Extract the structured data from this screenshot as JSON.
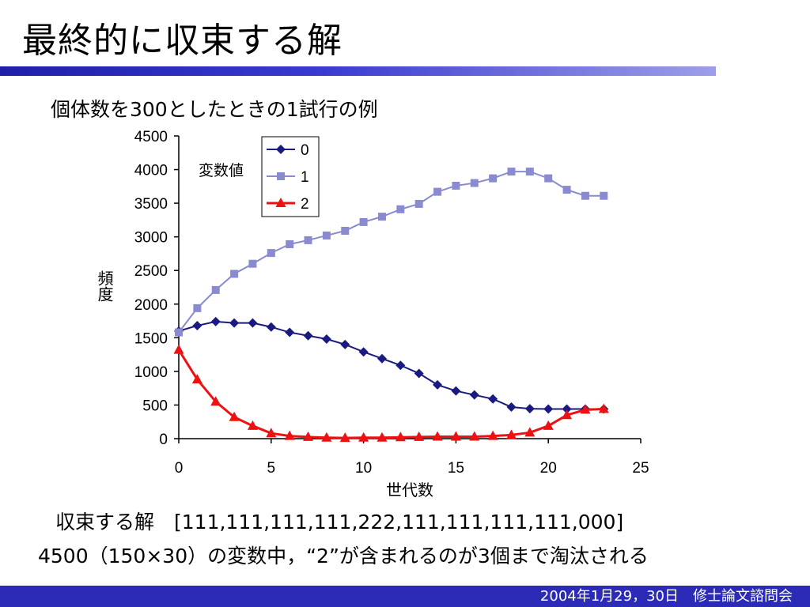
{
  "slide": {
    "title": "最終的に収束する解",
    "subtitle": "個体数を300としたときの1試行の例",
    "line1": "収束する解　[111,111,111,111,222,111,111,111,111,000]",
    "line2": "4500（150×30）の変数中，“2”が含まれるのが3個まで淘汰される",
    "footer": "2004年1月29，30日　修士論文諮問会"
  },
  "chart_data": {
    "type": "line",
    "title": "",
    "xlabel": "世代数",
    "ylabel": "頻度",
    "xlim": [
      0,
      25
    ],
    "ylim": [
      0,
      4500
    ],
    "xticks": [
      0,
      5,
      10,
      15,
      20,
      25
    ],
    "yticks": [
      0,
      500,
      1000,
      1500,
      2000,
      2500,
      3000,
      3500,
      4000,
      4500
    ],
    "grid": false,
    "legend_title": "変数値",
    "legend_position": "top-left",
    "x": [
      0,
      1,
      2,
      3,
      4,
      5,
      6,
      7,
      8,
      9,
      10,
      11,
      12,
      13,
      14,
      15,
      16,
      17,
      18,
      19,
      20,
      21,
      22,
      23
    ],
    "series": [
      {
        "name": "0",
        "color": "#1a1a80",
        "marker": "diamond",
        "values": [
          1600,
          1680,
          1740,
          1720,
          1720,
          1660,
          1580,
          1530,
          1480,
          1400,
          1290,
          1190,
          1090,
          970,
          800,
          710,
          650,
          590,
          470,
          445,
          440,
          440,
          440,
          440
        ]
      },
      {
        "name": "1",
        "color": "#8a8ad0",
        "marker": "square",
        "values": [
          1580,
          1940,
          2210,
          2450,
          2600,
          2760,
          2890,
          2950,
          3020,
          3090,
          3220,
          3300,
          3410,
          3490,
          3670,
          3760,
          3800,
          3870,
          3970,
          3970,
          3870,
          3700,
          3610,
          3610
        ]
      },
      {
        "name": "2",
        "color": "#ee1111",
        "marker": "triangle",
        "values": [
          1320,
          880,
          550,
          320,
          190,
          80,
          40,
          25,
          15,
          10,
          15,
          15,
          20,
          25,
          30,
          30,
          30,
          40,
          55,
          90,
          190,
          350,
          430,
          440
        ]
      }
    ]
  }
}
